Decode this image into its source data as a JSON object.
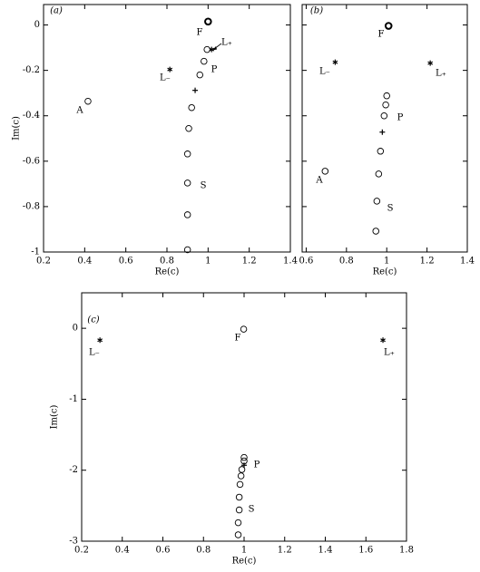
{
  "chart_data": [
    {
      "type": "scatter",
      "panel_label": "(a)",
      "xlabel": "Re(c)",
      "ylabel": "Im(c)",
      "xlim": [
        0.2,
        1.4
      ],
      "ylim": [
        -1,
        0.09
      ],
      "xticks": [
        0.2,
        0.4,
        0.6,
        0.8,
        1,
        1.2,
        1.4
      ],
      "yticks": [
        -1,
        -0.8,
        -0.6,
        -0.4,
        -0.2,
        0
      ],
      "series": [
        {
          "marker": "circle-bold",
          "color": "#000000",
          "x": [
            1.0
          ],
          "values": [
            0.015
          ]
        },
        {
          "marker": "circle",
          "color": "#000000",
          "x": [
            0.995,
            0.98,
            0.96,
            0.92,
            0.906,
            0.9,
            0.9,
            0.9,
            0.9,
            0.416
          ],
          "values": [
            -0.108,
            -0.16,
            -0.22,
            -0.364,
            -0.456,
            -0.568,
            -0.696,
            -0.836,
            -0.99,
            -0.336
          ]
        },
        {
          "marker": "star",
          "color": "#000000",
          "x": [
            0.814,
            1.017
          ],
          "values": [
            -0.196,
            -0.108
          ]
        },
        {
          "marker": "plus",
          "color": "#000000",
          "x": [
            0.937
          ],
          "values": [
            -0.288
          ]
        }
      ],
      "annotations": [
        "F",
        "L₊",
        "P",
        "L₋",
        "A",
        "S"
      ]
    },
    {
      "type": "scatter",
      "panel_label": "(b)",
      "xlabel": "Re(c)",
      "xlim": [
        0.58,
        1.4
      ],
      "ylim": [
        -1,
        0.09
      ],
      "xticks": [
        0.6,
        0.8,
        1,
        1.2,
        1.4
      ],
      "yticks": [
        -1,
        -0.8,
        -0.6,
        -0.4,
        -0.2,
        0
      ],
      "ytick_labels": false,
      "series": [
        {
          "marker": "circle-bold",
          "color": "#000000",
          "x": [
            1.009
          ],
          "values": [
            -0.004
          ]
        },
        {
          "marker": "circle",
          "color": "#000000",
          "x": [
            1.0,
            0.995,
            0.987,
            0.969,
            0.96,
            0.951,
            0.946,
            0.694
          ],
          "values": [
            -0.312,
            -0.352,
            -0.4,
            -0.556,
            -0.656,
            -0.776,
            -0.908,
            -0.644
          ]
        },
        {
          "marker": "star",
          "color": "#000000",
          "x": [
            0.744,
            1.216
          ],
          "values": [
            -0.164,
            -0.168
          ]
        },
        {
          "marker": "plus",
          "color": "#000000",
          "x": [
            0.978
          ],
          "values": [
            -0.472
          ]
        }
      ],
      "annotations": [
        "F",
        "L₋",
        "L₊",
        "P",
        "A",
        "S"
      ]
    },
    {
      "type": "scatter",
      "panel_label": "(c)",
      "xlabel": "Re(c)",
      "ylabel": "Im(c)",
      "xlim": [
        0.2,
        1.8
      ],
      "ylim": [
        -3,
        0.5
      ],
      "xticks": [
        0.2,
        0.4,
        0.6,
        0.8,
        1,
        1.2,
        1.4,
        1.6,
        1.8
      ],
      "yticks": [
        -3,
        -2,
        -1,
        0
      ],
      "series": [
        {
          "marker": "circle",
          "color": "#000000",
          "x": [
            0.998,
            1.0,
            1.0,
            0.989,
            0.985,
            0.98,
            0.976,
            0.976,
            0.971,
            0.971
          ],
          "values": [
            -0.013,
            -1.82,
            -1.87,
            -1.99,
            -2.08,
            -2.2,
            -2.38,
            -2.56,
            -2.74,
            -2.91
          ]
        },
        {
          "marker": "star",
          "color": "#000000",
          "x": [
            0.29,
            1.684
          ],
          "values": [
            -0.167,
            -0.167
          ]
        },
        {
          "marker": "plus",
          "color": "#000000",
          "x": [
            1.0
          ],
          "values": [
            -1.93
          ]
        }
      ],
      "annotations": [
        "F",
        "L₋",
        "L₊",
        "P",
        "S"
      ]
    }
  ]
}
